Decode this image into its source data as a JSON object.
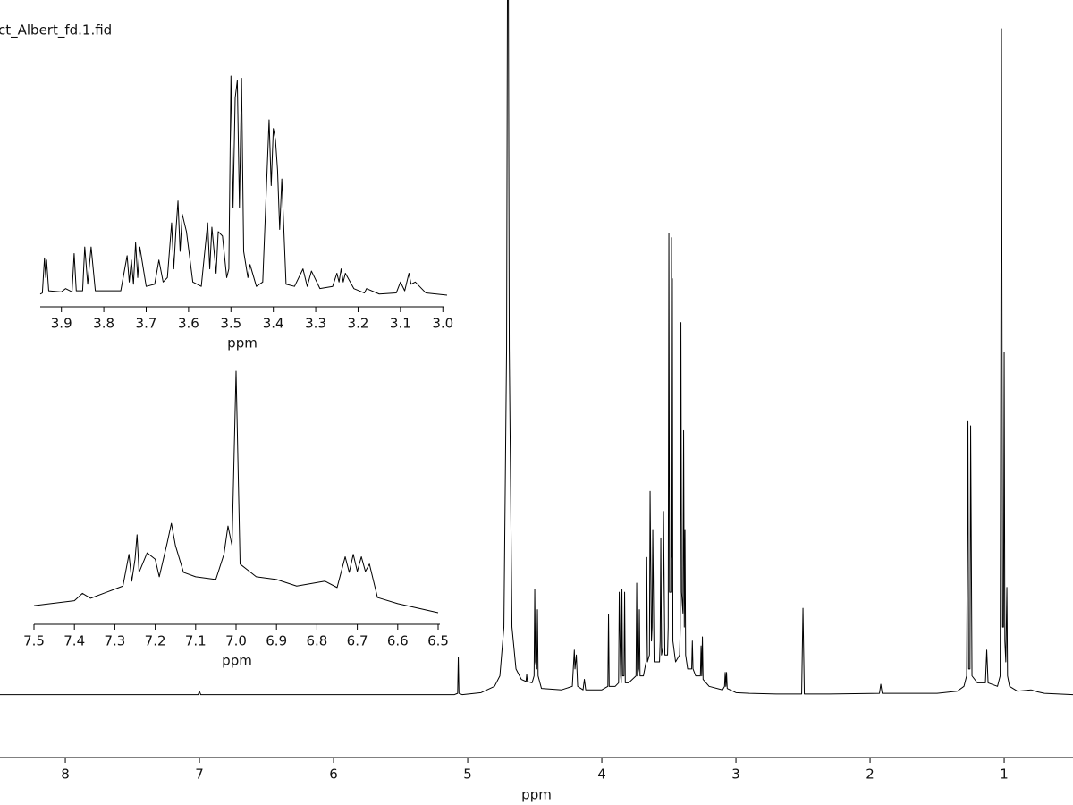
{
  "chart_data": [
    {
      "type": "line",
      "title": "ct_Albert_fd.1.fid",
      "xlabel": "ppm",
      "xlim": [
        8.487,
        0.487
      ],
      "ylim": [
        0,
        100
      ],
      "xticks": [
        8,
        7,
        6,
        5,
        4,
        3,
        2,
        1
      ],
      "x": [
        8.487,
        7.01,
        7.0,
        6.99,
        5.1,
        5.075,
        5.07,
        5.065,
        5.04,
        4.9,
        4.8,
        4.76,
        4.73,
        4.71,
        4.7,
        4.69,
        4.67,
        4.64,
        4.6,
        4.565,
        4.56,
        4.555,
        4.52,
        4.505,
        4.5,
        4.495,
        4.485,
        4.48,
        4.475,
        4.45,
        4.3,
        4.22,
        4.205,
        4.2,
        4.19,
        4.18,
        4.14,
        4.13,
        4.12,
        4.0,
        3.955,
        3.95,
        3.945,
        3.9,
        3.875,
        3.87,
        3.86,
        3.855,
        3.85,
        3.845,
        3.835,
        3.83,
        3.825,
        3.8,
        3.745,
        3.74,
        3.735,
        3.725,
        3.72,
        3.715,
        3.69,
        3.67,
        3.665,
        3.66,
        3.645,
        3.64,
        3.63,
        3.625,
        3.62,
        3.61,
        3.57,
        3.565,
        3.56,
        3.555,
        3.545,
        3.54,
        3.53,
        3.51,
        3.505,
        3.5,
        3.495,
        3.485,
        3.48,
        3.478,
        3.474,
        3.47,
        3.45,
        3.42,
        3.415,
        3.41,
        3.405,
        3.395,
        3.39,
        3.385,
        3.38,
        3.375,
        3.36,
        3.33,
        3.325,
        3.32,
        3.3,
        3.265,
        3.26,
        3.255,
        3.25,
        3.245,
        3.2,
        3.1,
        3.085,
        3.08,
        3.075,
        3.07,
        3.065,
        3.0,
        2.9,
        2.7,
        2.51,
        2.5,
        2.49,
        2.3,
        1.93,
        1.92,
        1.91,
        1.5,
        1.35,
        1.3,
        1.28,
        1.27,
        1.265,
        1.255,
        1.25,
        1.24,
        1.2,
        1.14,
        1.13,
        1.12,
        1.05,
        1.03,
        1.02,
        1.012,
        1.005,
        1.0,
        0.995,
        0.988,
        0.98,
        0.975,
        0.96,
        0.9,
        0.8,
        0.75,
        0.7,
        0.487
      ],
      "series": [
        {
          "color": "#000000",
          "values": [
            0.3,
            0.3,
            0.8,
            0.3,
            0.3,
            0.5,
            5.7,
            0.5,
            0.3,
            0.6,
            1.5,
            3,
            10,
            50,
            130,
            50,
            10,
            4,
            2.5,
            2.2,
            3.2,
            2.2,
            2,
            3,
            15.4,
            5,
            4,
            12.5,
            3,
            1.2,
            1,
            1.5,
            6.7,
            4,
            6,
            1.5,
            1,
            2.5,
            1,
            1,
            1.5,
            11.8,
            1.5,
            1.5,
            2,
            15,
            3,
            2,
            15.4,
            3,
            3,
            15,
            2,
            2,
            3,
            16.3,
            3,
            4,
            12.5,
            3,
            3,
            5,
            20,
            5,
            6,
            29.5,
            8,
            10,
            24,
            5,
            5,
            8,
            22.8,
            6,
            7,
            26.6,
            6,
            6,
            10,
            66.5,
            15,
            15,
            65.9,
            20,
            60,
            8,
            5,
            6,
            10,
            53.7,
            15,
            12,
            38.2,
            10,
            24,
            6,
            4,
            4,
            8,
            4,
            3,
            3,
            7.3,
            3,
            8.6,
            2.5,
            1.5,
            1,
            1.5,
            3.5,
            1.5,
            3.5,
            1.2,
            0.6,
            0.5,
            0.4,
            0.4,
            12.7,
            0.4,
            0.4,
            0.5,
            1.8,
            0.5,
            0.5,
            0.8,
            1.5,
            3,
            39.5,
            4,
            4,
            38.9,
            3,
            2,
            2,
            6.7,
            2,
            1.5,
            3,
            95.9,
            10,
            10,
            49.4,
            8,
            5,
            15.7,
            3,
            1.5,
            0.8,
            1,
            0.7,
            0.5,
            0.3
          ]
        }
      ]
    },
    {
      "type": "line",
      "xlabel": "ppm",
      "xlim": [
        3.95,
        2.99
      ],
      "ylim": [
        0,
        100
      ],
      "xticks": [
        3.9,
        3.8,
        3.7,
        3.6,
        3.5,
        3.4,
        3.3,
        3.2,
        3.1,
        {
          "value": 3,
          "label": "3.0"
        }
      ],
      "x": [
        3.95,
        3.945,
        3.94,
        3.937,
        3.935,
        3.93,
        3.9,
        3.89,
        3.875,
        3.87,
        3.865,
        3.85,
        3.845,
        3.838,
        3.83,
        3.82,
        3.76,
        3.745,
        3.74,
        3.735,
        3.73,
        3.725,
        3.72,
        3.715,
        3.7,
        3.68,
        3.67,
        3.66,
        3.65,
        3.64,
        3.635,
        3.63,
        3.625,
        3.62,
        3.615,
        3.605,
        3.59,
        3.57,
        3.555,
        3.55,
        3.545,
        3.535,
        3.53,
        3.52,
        3.51,
        3.505,
        3.5,
        3.495,
        3.49,
        3.485,
        3.48,
        3.475,
        3.47,
        3.46,
        3.455,
        3.44,
        3.425,
        3.41,
        3.405,
        3.4,
        3.395,
        3.39,
        3.385,
        3.38,
        3.37,
        3.35,
        3.33,
        3.32,
        3.31,
        3.29,
        3.26,
        3.25,
        3.245,
        3.24,
        3.235,
        3.23,
        3.21,
        3.185,
        3.18,
        3.15,
        3.11,
        3.1,
        3.09,
        3.08,
        3.075,
        3.065,
        3.04,
        2.99
      ],
      "series": [
        {
          "color": "#000000",
          "values": [
            0.5,
            1,
            17,
            8,
            16,
            2,
            1.5,
            3,
            1.5,
            19,
            2,
            2,
            22,
            5,
            22,
            2,
            2,
            18,
            6,
            16,
            5,
            24,
            8,
            22,
            4,
            5,
            16,
            6,
            8,
            33,
            12,
            29,
            43,
            20,
            37,
            29,
            6,
            4,
            33,
            12,
            31,
            10,
            29,
            27,
            8,
            12,
            100,
            40,
            90,
            98,
            40,
            99,
            20,
            8,
            14,
            4,
            6,
            80,
            50,
            76,
            71,
            57,
            30,
            53,
            5,
            4,
            12,
            4,
            11,
            3,
            4,
            10,
            6,
            12,
            6,
            10,
            3,
            1,
            3,
            0.5,
            1,
            6,
            2,
            10,
            5,
            6,
            1,
            0
          ]
        }
      ]
    },
    {
      "type": "line",
      "xlabel": "ppm",
      "xlim": [
        7.5,
        6.5
      ],
      "ylim": [
        0,
        100
      ],
      "xticks": [
        7.5,
        7.4,
        7.3,
        7.2,
        7.1,
        {
          "value": 7,
          "label": "7.0"
        },
        6.9,
        6.8,
        6.7,
        6.6,
        6.5
      ],
      "x": [
        7.5,
        7.45,
        7.4,
        7.38,
        7.36,
        7.32,
        7.28,
        7.265,
        7.258,
        7.25,
        7.245,
        7.24,
        7.22,
        7.2,
        7.19,
        7.17,
        7.16,
        7.15,
        7.13,
        7.1,
        7.05,
        7.03,
        7.02,
        7.01,
        7.0,
        6.99,
        6.95,
        6.9,
        6.85,
        6.78,
        6.75,
        6.73,
        6.72,
        6.71,
        6.7,
        6.69,
        6.68,
        6.67,
        6.65,
        6.6,
        6.5
      ],
      "series": [
        {
          "color": "#000000",
          "values": [
            4,
            5,
            6,
            9,
            7,
            9.5,
            12,
            25,
            14,
            23,
            33,
            17.6,
            25.6,
            23,
            15.8,
            30,
            37.7,
            28.6,
            17.6,
            15.8,
            14.7,
            25,
            36.6,
            28.6,
            100,
            21,
            15.8,
            14.7,
            12,
            14,
            11.4,
            24,
            17.6,
            25,
            18,
            24,
            18,
            21,
            7.3,
            4.8,
            1.1
          ]
        }
      ]
    }
  ]
}
